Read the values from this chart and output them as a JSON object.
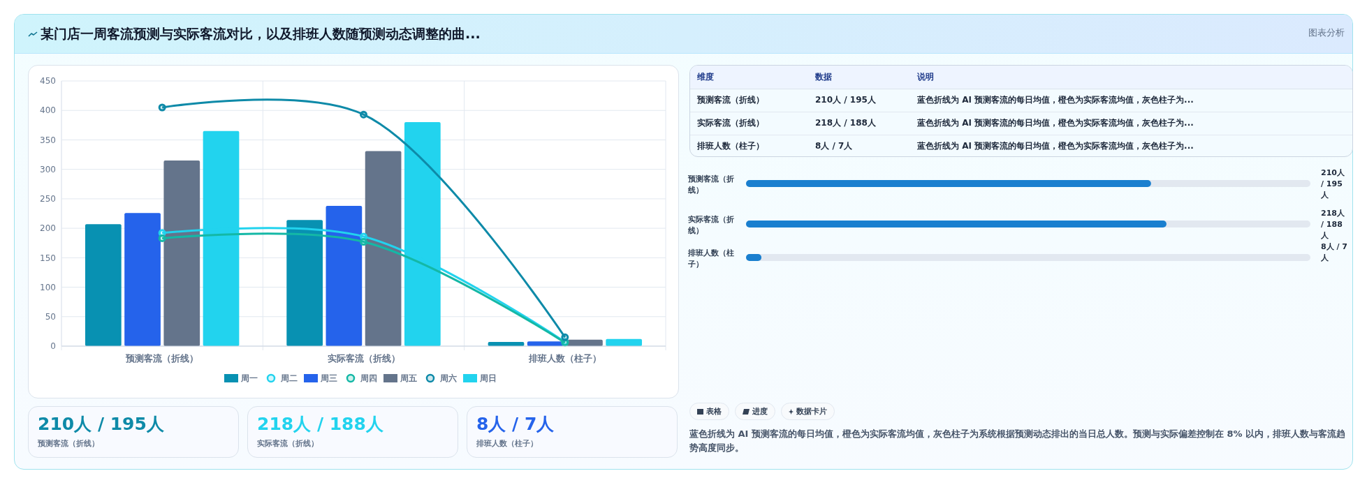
{
  "chart_data": [
    {
      "type": "bar",
      "title": "某门店一周客流预测与实际客流对比，以及排班人数随预测动态调整的曲...",
      "categories": [
        "预测客流（折线）",
        "实际客流（折线）",
        "排班人数（柱子）"
      ],
      "series": [
        {
          "name": "周一",
          "type": "bar",
          "color": "#0891b2",
          "values": [
            207,
            214,
            7
          ]
        },
        {
          "name": "周二",
          "type": "line",
          "color": "#22d3ee",
          "values": [
            192,
            186,
            7
          ]
        },
        {
          "name": "周三",
          "type": "bar",
          "color": "#2563eb",
          "values": [
            226,
            238,
            8
          ]
        },
        {
          "name": "周四",
          "type": "line",
          "color": "#14b8a6",
          "values": [
            183,
            177,
            6
          ]
        },
        {
          "name": "周五",
          "type": "bar",
          "color": "#64748b",
          "values": [
            315,
            331,
            11
          ]
        },
        {
          "name": "周六",
          "type": "line",
          "color": "#0e8aa8",
          "values": [
            405,
            393,
            15
          ]
        },
        {
          "name": "周日",
          "type": "bar",
          "color": "#22d3ee",
          "values": [
            365,
            380,
            12
          ]
        }
      ],
      "ylim": [
        0,
        450
      ],
      "yticks": [
        0,
        50,
        100,
        150,
        200,
        250,
        300,
        350,
        400,
        450
      ],
      "grid": true,
      "legend": "bottom",
      "marker": "circle"
    },
    {
      "type": "bar",
      "orientation": "horizontal",
      "categories": [
        "预测客流（折线）",
        "实际客流（折线）",
        "排班人数（柱子）"
      ],
      "values": [
        210,
        218,
        8
      ],
      "value_labels": [
        "210人 / 195人",
        "218人 / 188人",
        "8人 / 7人"
      ],
      "color": "#1a7fcf"
    },
    {
      "type": "other",
      "annotations": [
        "维度",
        "数据",
        "说明",
        "预测客流（折线）",
        "210人 / 195人",
        "蓝色折线为 AI 预测客流的每日均值，橙色为实际客流均值，灰色柱子为...",
        "实际客流（折线）",
        "218人 / 188人",
        "蓝色折线为 AI 预测客流的每日均值，橙色为实际客流均值，灰色柱子为...",
        "排班人数（柱子）",
        "8人 / 7人",
        "蓝色折线为 AI 预测客流的每日均值，橙色为实际客流均值，灰色柱子为...",
        "210人 / 195人",
        "预测客流（折线）",
        "218人 / 188人",
        "实际客流（折线）",
        "8人 / 7人",
        "排班人数（柱子）",
        "表格",
        "进度",
        "数据卡片",
        "蓝色折线为 AI 预测客流的每日均值，橙色为实际客流均值，灰色柱子为系统根据预测动态排出的当日总人数。预测与实际偏差控制在 8% 以内，排班人数与客流趋势高度同步。",
        "图表分析"
      ]
    }
  ]
}
